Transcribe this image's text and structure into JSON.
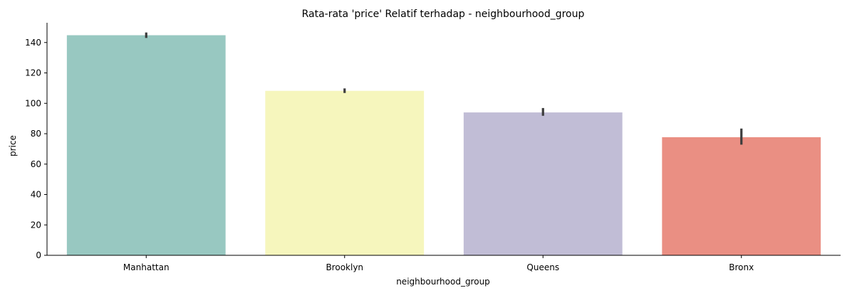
{
  "chart_data": {
    "type": "bar",
    "title": "Rata-rata 'price' Relatif terhadap - neighbourhood_group",
    "xlabel": "neighbourhood_group",
    "ylabel": "price",
    "categories": [
      "Manhattan",
      "Brooklyn",
      "Queens",
      "Bronx"
    ],
    "values": [
      144.8,
      108.2,
      94.0,
      77.7
    ],
    "error_low": [
      143.0,
      106.8,
      91.8,
      72.8
    ],
    "error_high": [
      146.6,
      109.8,
      96.9,
      83.4
    ],
    "colors": [
      "#98c8c1",
      "#f6f6bd",
      "#c1bdd6",
      "#ea8f83"
    ],
    "ylim": [
      0,
      153
    ],
    "yticks": [
      0,
      20,
      40,
      60,
      80,
      100,
      120,
      140
    ],
    "grid": false,
    "legend": "none"
  }
}
